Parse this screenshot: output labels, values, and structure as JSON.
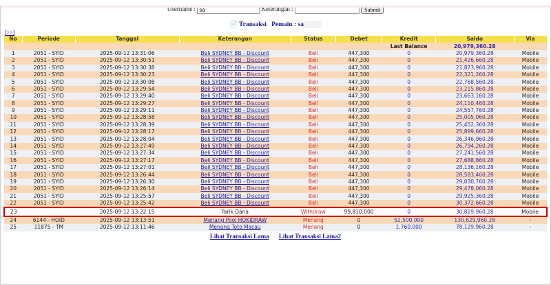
{
  "form": {
    "username_label": "Username :",
    "username_value": "sa",
    "keterangan_label": "Keterangan :",
    "keterangan_value": "",
    "submit": "Submit"
  },
  "title": {
    "icon": "document-icon",
    "label": "Transaksi",
    "pemain": "Pemain : sa"
  },
  "nav": "[>>]",
  "headers": [
    "No",
    "Periode",
    "Tanggal",
    "Keterangan",
    "Status",
    "Debet",
    "Kredit",
    "Saldo",
    "Via"
  ],
  "last_balance": {
    "label": "Last Balance",
    "value": "20,979,360.28"
  },
  "rows": [
    [
      "1",
      "2051 - SYID",
      "2025-09-12 13:31:06",
      "Beli SYDNEY BB - Discount",
      "Beli",
      "447,300",
      "0",
      "20,979,360.28",
      "Mobile"
    ],
    [
      "2",
      "2051 - SYID",
      "2025-09-12 13:30:51",
      "Beli SYDNEY BB - Discount",
      "Beli",
      "447,300",
      "0",
      "21,426,660.28",
      "Mobile"
    ],
    [
      "3",
      "2051 - SYID",
      "2025-09-12 13:30:38",
      "Beli SYDNEY BB - Discount",
      "Beli",
      "447,300",
      "0",
      "21,873,960.28",
      "Mobile"
    ],
    [
      "4",
      "2051 - SYID",
      "2025-09-12 13:30:23",
      "Beli SYDNEY BB - Discount",
      "Beli",
      "447,300",
      "0",
      "22,321,260.28",
      "Mobile"
    ],
    [
      "5",
      "2051 - SYID",
      "2025-09-12 13:30:08",
      "Beli SYDNEY BB - Discount",
      "Beli",
      "447,300",
      "0",
      "22,768,560.28",
      "Mobile"
    ],
    [
      "6",
      "2051 - SYID",
      "2025-09-12 13:29:54",
      "Beli SYDNEY BB - Discount",
      "Beli",
      "447,300",
      "0",
      "23,215,860.28",
      "Mobile"
    ],
    [
      "7",
      "2051 - SYID",
      "2025-09-12 13:29:40",
      "Beli SYDNEY BB - Discount",
      "Beli",
      "447,300",
      "0",
      "23,663,160.28",
      "Mobile"
    ],
    [
      "8",
      "2051 - SYID",
      "2025-09-12 13:29:27",
      "Beli SYDNEY BB - Discount",
      "Beli",
      "447,300",
      "0",
      "24,110,460.28",
      "Mobile"
    ],
    [
      "9",
      "2051 - SYID",
      "2025-09-12 13:29:11",
      "Beli SYDNEY BB - Discount",
      "Beli",
      "447,300",
      "0",
      "24,557,760.28",
      "Mobile"
    ],
    [
      "10",
      "2051 - SYID",
      "2025-09-12 13:28:58",
      "Beli SYDNEY BB - Discount",
      "Beli",
      "447,300",
      "0",
      "25,005,060.28",
      "Mobile"
    ],
    [
      "11",
      "2051 - SYID",
      "2025-09-12 13:28:39",
      "Beli SYDNEY BB - Discount",
      "Beli",
      "447,300",
      "0",
      "25,452,360.28",
      "Mobile"
    ],
    [
      "12",
      "2051 - SYID",
      "2025-09-12 13:28:17",
      "Beli SYDNEY BB - Discount",
      "Beli",
      "447,300",
      "0",
      "25,899,660.28",
      "Mobile"
    ],
    [
      "13",
      "2051 - SYID",
      "2025-09-12 13:28:04",
      "Beli SYDNEY BB - Discount",
      "Beli",
      "447,300",
      "0",
      "26,346,960.28",
      "Mobile"
    ],
    [
      "14",
      "2051 - SYID",
      "2025-09-12 13:27:49",
      "Beli SYDNEY BB - Discount",
      "Beli",
      "447,300",
      "0",
      "26,794,260.28",
      "Mobile"
    ],
    [
      "15",
      "2051 - SYID",
      "2025-09-12 13:27:34",
      "Beli SYDNEY BB - Discount",
      "Beli",
      "447,300",
      "0",
      "27,241,560.28",
      "Mobile"
    ],
    [
      "16",
      "2051 - SYID",
      "2025-09-12 13:27:17",
      "Beli SYDNEY BB - Discount",
      "Beli",
      "447,300",
      "0",
      "27,688,860.28",
      "Mobile"
    ],
    [
      "17",
      "2051 - SYID",
      "2025-09-12 13:27:01",
      "Beli SYDNEY BB - Discount",
      "Beli",
      "447,300",
      "0",
      "28,136,160.28",
      "Mobile"
    ],
    [
      "18",
      "2051 - SYID",
      "2025-09-12 13:26:44",
      "Beli SYDNEY BB - Discount",
      "Beli",
      "447,300",
      "0",
      "28,583,460.28",
      "Mobile"
    ],
    [
      "19",
      "2051 - SYID",
      "2025-09-12 13:26:30",
      "Beli SYDNEY BB - Discount",
      "Beli",
      "447,300",
      "0",
      "29,030,760.28",
      "Mobile"
    ],
    [
      "20",
      "2051 - SYID",
      "2025-09-12 13:26:14",
      "Beli SYDNEY BB - Discount",
      "Beli",
      "447,300",
      "0",
      "29,478,060.28",
      "Mobile"
    ],
    [
      "21",
      "2051 - SYID",
      "2025-09-12 13:25:57",
      "Beli SYDNEY BB - Discount",
      "Beli",
      "447,300",
      "0",
      "29,925,360.28",
      "Mobile"
    ],
    [
      "22",
      "2051 - SYID",
      "2025-09-12 13:25:42",
      "Beli SYDNEY BB - Discount",
      "Beli",
      "447,300",
      "0",
      "30,372,660.28",
      "Mobile"
    ],
    [
      "23",
      "",
      "2025-09-12 13:22:15",
      "Tarik Dana",
      "Withdraw",
      "99,810,000",
      "0",
      "30,819,960.28",
      "Mobile"
    ],
    [
      "24",
      "6144 - HOID",
      "2025-09-12 13:13:51",
      "Menang Pool HOKIDRAW",
      "Menang",
      "0",
      "52,500,000",
      "130,629,960.28",
      "-"
    ],
    [
      "25",
      "11875 - TM",
      "2025-09-12 13:11:46",
      "Menang Toto Macau",
      "Menang",
      "0",
      "1,760,000",
      "78,129,960.28",
      "-"
    ]
  ],
  "highlighted_row": "23",
  "links": [
    "Lihat Transaksi Lama",
    "Lihat Transaksi Lama2"
  ],
  "colors": {
    "header": "#f5e04a",
    "row_even": "#fbd9b8",
    "row_odd": "#eef0f4",
    "highlight": "#cc0000",
    "status": "#d03030"
  }
}
